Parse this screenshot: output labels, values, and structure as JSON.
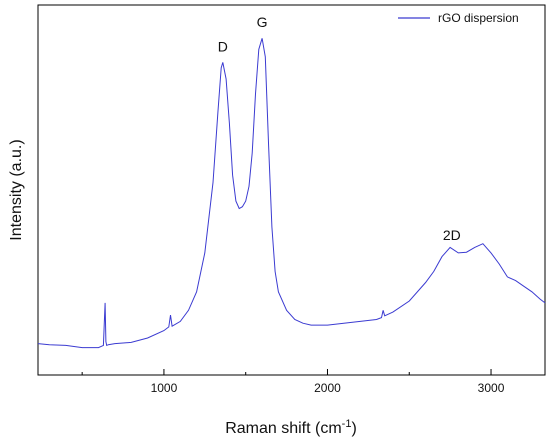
{
  "chart_data": {
    "type": "line",
    "title": "",
    "xlabel_main": "Raman shift (cm",
    "xlabel_sup": "-1",
    "xlabel_close": ")",
    "ylabel": "Intensity (a.u.)",
    "xlim": [
      230,
      3330
    ],
    "ylim": [
      0,
      1.0
    ],
    "x_ticks": [
      1000,
      2000,
      3000
    ],
    "y_tick_labels_shown": false,
    "grid": false,
    "legend_position": "top-right",
    "colors": {
      "series": "#3b3bd1",
      "axis": "#000000"
    },
    "series": [
      {
        "name": "rGO dispersion",
        "x": [
          230,
          300,
          400,
          500,
          600,
          630,
          640,
          645,
          650,
          660,
          700,
          800,
          900,
          1000,
          1030,
          1040,
          1050,
          1100,
          1150,
          1200,
          1250,
          1300,
          1330,
          1350,
          1360,
          1380,
          1400,
          1420,
          1440,
          1460,
          1480,
          1500,
          1520,
          1540,
          1560,
          1580,
          1600,
          1620,
          1640,
          1660,
          1680,
          1700,
          1750,
          1800,
          1850,
          1900,
          2000,
          2100,
          2200,
          2300,
          2330,
          2340,
          2350,
          2400,
          2500,
          2600,
          2650,
          2700,
          2750,
          2800,
          2850,
          2900,
          2950,
          3000,
          3050,
          3100,
          3150,
          3200,
          3250,
          3300,
          3330
        ],
        "y": [
          0.085,
          0.082,
          0.08,
          0.074,
          0.074,
          0.08,
          0.195,
          0.09,
          0.08,
          0.082,
          0.085,
          0.088,
          0.1,
          0.12,
          0.13,
          0.162,
          0.132,
          0.145,
          0.175,
          0.225,
          0.33,
          0.52,
          0.71,
          0.83,
          0.845,
          0.8,
          0.68,
          0.54,
          0.47,
          0.45,
          0.455,
          0.47,
          0.51,
          0.6,
          0.76,
          0.88,
          0.91,
          0.86,
          0.62,
          0.4,
          0.28,
          0.225,
          0.175,
          0.15,
          0.14,
          0.135,
          0.135,
          0.14,
          0.145,
          0.15,
          0.155,
          0.175,
          0.16,
          0.17,
          0.2,
          0.25,
          0.28,
          0.32,
          0.345,
          0.33,
          0.332,
          0.345,
          0.355,
          0.33,
          0.3,
          0.265,
          0.255,
          0.24,
          0.225,
          0.205,
          0.195
        ]
      }
    ],
    "annotations": [
      {
        "text": "D",
        "x": 1360,
        "y": 0.875
      },
      {
        "text": "G",
        "x": 1600,
        "y": 0.94
      },
      {
        "text": "2D",
        "x": 2760,
        "y": 0.365
      }
    ]
  }
}
